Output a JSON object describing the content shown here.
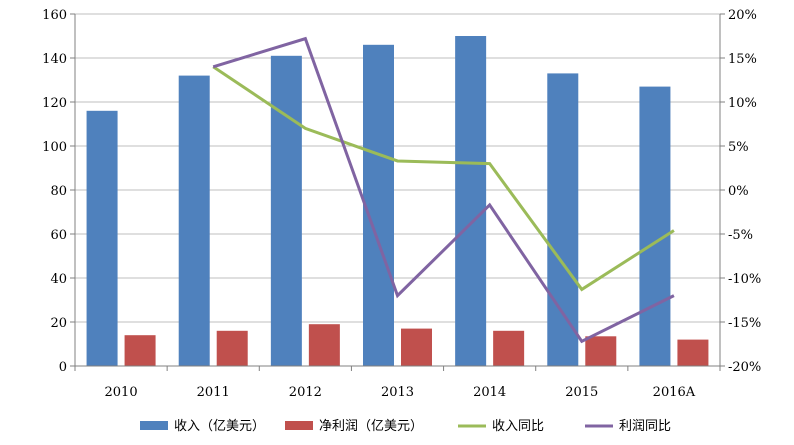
{
  "chart_data": {
    "type": "bar",
    "categories": [
      "2010",
      "2011",
      "2012",
      "2013",
      "2014",
      "2015",
      "2016A"
    ],
    "series": [
      {
        "name": "收入（亿美元）",
        "type": "bar",
        "axis": "left",
        "color": "#4F81BD",
        "values": [
          116,
          132,
          141,
          146,
          150,
          133,
          127
        ]
      },
      {
        "name": "净利润（亿美元）",
        "type": "bar",
        "axis": "left",
        "color": "#C0504D",
        "values": [
          14,
          16,
          19,
          17,
          16,
          13.5,
          12
        ]
      },
      {
        "name": "收入同比",
        "type": "line",
        "axis": "right",
        "color": "#9BBB59",
        "values": [
          null,
          14,
          7,
          3.3,
          3,
          -11.3,
          -4.6
        ]
      },
      {
        "name": "利润同比",
        "type": "line",
        "axis": "right",
        "color": "#8064A2",
        "values": [
          null,
          14,
          17.2,
          -12,
          -1.7,
          -17.2,
          -12
        ]
      }
    ],
    "y_left": {
      "min": 0,
      "max": 160,
      "step": 20,
      "ticks": [
        "0",
        "20",
        "40",
        "60",
        "80",
        "100",
        "120",
        "140",
        "160"
      ]
    },
    "y_right": {
      "min": -20,
      "max": 20,
      "step": 5,
      "ticks": [
        "-20%",
        "-15%",
        "-10%",
        "-5%",
        "0%",
        "5%",
        "10%",
        "15%",
        "20%"
      ]
    },
    "grid": true,
    "legend_position": "bottom",
    "title": "",
    "xlabel": "",
    "ylabel": ""
  }
}
